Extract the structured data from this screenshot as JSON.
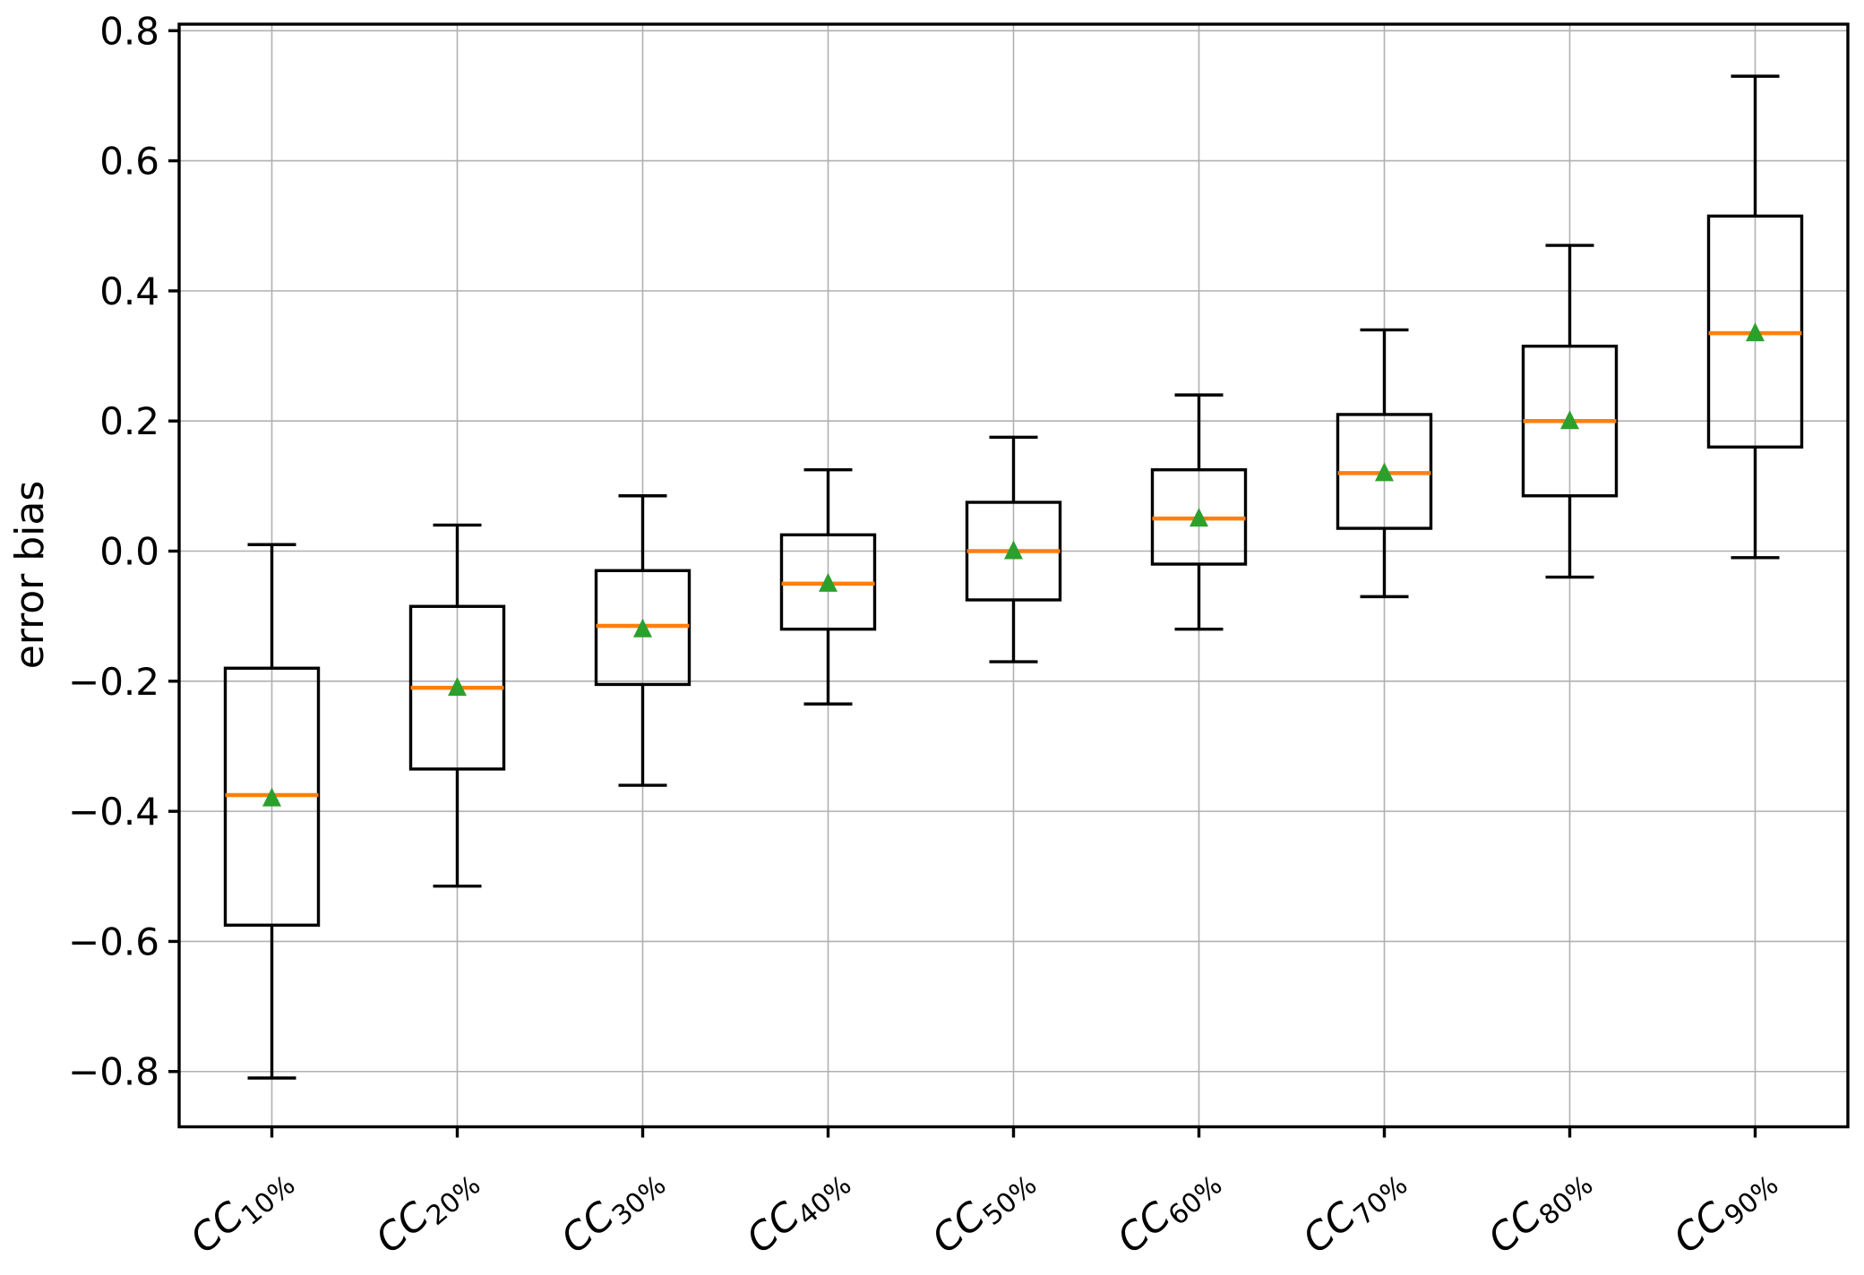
{
  "figure": {
    "background": "#ffffff"
  },
  "chart_data": {
    "type": "boxplot",
    "title": "",
    "xlabel": "",
    "ylabel": "error bias",
    "ylim": [
      -0.885,
      0.81
    ],
    "yticks": [
      0.8,
      0.6,
      0.4,
      0.2,
      0.0,
      -0.2,
      -0.4,
      -0.6,
      -0.8
    ],
    "grid": true,
    "legend_position": "none",
    "categories": [
      {
        "base": "CC",
        "sub": "10%",
        "text": "CC10%"
      },
      {
        "base": "CC",
        "sub": "20%",
        "text": "CC20%"
      },
      {
        "base": "CC",
        "sub": "30%",
        "text": "CC30%"
      },
      {
        "base": "CC",
        "sub": "40%",
        "text": "CC40%"
      },
      {
        "base": "CC",
        "sub": "50%",
        "text": "CC50%"
      },
      {
        "base": "CC",
        "sub": "60%",
        "text": "CC60%"
      },
      {
        "base": "CC",
        "sub": "70%",
        "text": "CC70%"
      },
      {
        "base": "CC",
        "sub": "80%",
        "text": "CC80%"
      },
      {
        "base": "CC",
        "sub": "90%",
        "text": "CC90%"
      }
    ],
    "boxes": [
      {
        "label": "CC10%",
        "whisker_low": -0.81,
        "q1": -0.575,
        "median": -0.375,
        "mean": -0.38,
        "q3": -0.18,
        "whisker_high": 0.01
      },
      {
        "label": "CC20%",
        "whisker_low": -0.515,
        "q1": -0.335,
        "median": -0.21,
        "mean": -0.21,
        "q3": -0.085,
        "whisker_high": 0.04
      },
      {
        "label": "CC30%",
        "whisker_low": -0.36,
        "q1": -0.205,
        "median": -0.115,
        "mean": -0.12,
        "q3": -0.03,
        "whisker_high": 0.085
      },
      {
        "label": "CC40%",
        "whisker_low": -0.235,
        "q1": -0.12,
        "median": -0.05,
        "mean": -0.05,
        "q3": 0.025,
        "whisker_high": 0.125
      },
      {
        "label": "CC50%",
        "whisker_low": -0.17,
        "q1": -0.075,
        "median": 0.0,
        "mean": 0.0,
        "q3": 0.075,
        "whisker_high": 0.175
      },
      {
        "label": "CC60%",
        "whisker_low": -0.12,
        "q1": -0.02,
        "median": 0.05,
        "mean": 0.05,
        "q3": 0.125,
        "whisker_high": 0.24
      },
      {
        "label": "CC70%",
        "whisker_low": -0.07,
        "q1": 0.035,
        "median": 0.12,
        "mean": 0.12,
        "q3": 0.21,
        "whisker_high": 0.34
      },
      {
        "label": "CC80%",
        "whisker_low": -0.04,
        "q1": 0.085,
        "median": 0.2,
        "mean": 0.2,
        "q3": 0.315,
        "whisker_high": 0.47
      },
      {
        "label": "CC90%",
        "whisker_low": -0.01,
        "q1": 0.16,
        "median": 0.335,
        "mean": 0.335,
        "q3": 0.515,
        "whisker_high": 0.73
      }
    ],
    "colors": {
      "box_line": "#000000",
      "whisker_line": "#000000",
      "median_line": "#ff7f0e",
      "mean_marker": "#2ca02c",
      "grid_line": "#b0b0b0",
      "spine": "#000000",
      "background": "#ffffff"
    }
  }
}
